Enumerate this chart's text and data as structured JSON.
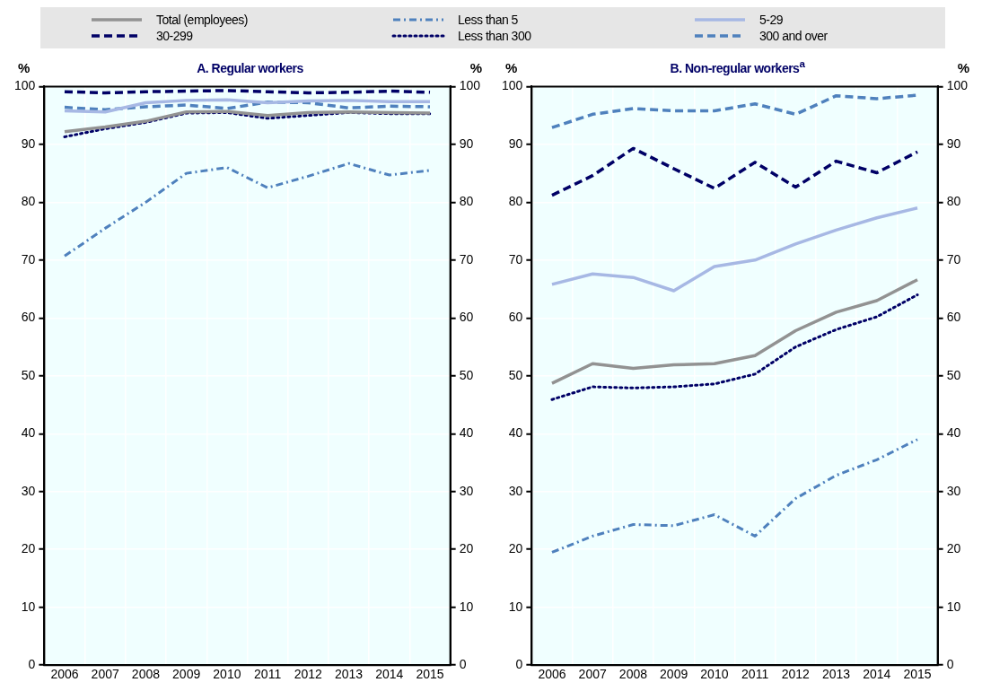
{
  "chart_data": [
    {
      "type": "line",
      "title": "A. Regular workers",
      "ylabel": "%",
      "y2label": "%",
      "categories": [
        "2006",
        "2007",
        "2008",
        "2009",
        "2010",
        "2011",
        "2012",
        "2013",
        "2014",
        "2015"
      ],
      "ylim": [
        0,
        100
      ],
      "yticks": [
        0,
        10,
        20,
        30,
        40,
        50,
        60,
        70,
        80,
        90,
        100
      ],
      "y2lim": [
        0,
        100
      ],
      "y2ticks": [
        0,
        10,
        20,
        30,
        40,
        50,
        60,
        70,
        80,
        90,
        100
      ],
      "grid": true,
      "legend": "top",
      "marker": "none",
      "series": [
        {
          "name": "Total (employees)",
          "color": "#929292",
          "line_style": "solid",
          "values": [
            92.2,
            93,
            94,
            95.6,
            95.7,
            95,
            95.5,
            95.6,
            95.5,
            95.4
          ]
        },
        {
          "name": "Less than 5",
          "color": "#4f81bd",
          "line_style": "dashdot",
          "values": [
            70.7,
            75.5,
            80,
            85,
            86,
            82.5,
            84.5,
            86.7,
            84.7,
            85.5
          ]
        },
        {
          "name": "5-29",
          "color": "#a7b8e4",
          "line_style": "solid",
          "values": [
            95.8,
            95.6,
            97.2,
            97.6,
            97.7,
            97.2,
            97.5,
            97.6,
            97.4,
            97.4
          ]
        },
        {
          "name": "30-299",
          "color": "#000066",
          "line_style": "dashed",
          "values": [
            99.1,
            98.9,
            99.1,
            99.2,
            99.3,
            99.1,
            98.9,
            99,
            99.2,
            99
          ]
        },
        {
          "name": "Less than 300",
          "color": "#000066",
          "line_style": "dotted",
          "values": [
            91.3,
            92.7,
            93.8,
            95.4,
            95.5,
            94.5,
            95,
            95.5,
            95.3,
            95.3
          ]
        },
        {
          "name": "300 and over",
          "color": "#4f81bd",
          "line_style": "dashed",
          "values": [
            96.4,
            96,
            96.5,
            96.8,
            96.2,
            97.3,
            97.2,
            96.3,
            96.6,
            96.5
          ]
        }
      ]
    },
    {
      "type": "line",
      "title": "B. Non-regular workers$^{a}$",
      "ylabel": "%",
      "y2label": "%",
      "categories": [
        "2006",
        "2007",
        "2008",
        "2009",
        "2010",
        "2011",
        "2012",
        "2013",
        "2014",
        "2015"
      ],
      "ylim": [
        0,
        100
      ],
      "yticks": [
        0,
        10,
        20,
        30,
        40,
        50,
        60,
        70,
        80,
        90,
        100
      ],
      "y2lim": [
        0,
        100
      ],
      "y2ticks": [
        0,
        10,
        20,
        30,
        40,
        50,
        60,
        70,
        80,
        90,
        100
      ],
      "grid": true,
      "legend": "top",
      "marker": "none",
      "series": [
        {
          "name": "Total (employees)",
          "color": "#929292",
          "line_style": "solid",
          "values": [
            48.7,
            52.1,
            51.3,
            51.9,
            52.1,
            53.5,
            57.8,
            61,
            63,
            66.6
          ]
        },
        {
          "name": "Less than 5",
          "color": "#4f81bd",
          "line_style": "dashdot",
          "values": [
            19.5,
            22.3,
            24.3,
            24.1,
            26,
            22.3,
            28.8,
            32.8,
            35.5,
            39
          ]
        },
        {
          "name": "5-29",
          "color": "#a7b8e4",
          "line_style": "solid",
          "values": [
            65.8,
            67.6,
            67,
            64.7,
            68.9,
            70,
            72.8,
            75.2,
            77.3,
            79
          ]
        },
        {
          "name": "30-299",
          "color": "#000066",
          "line_style": "dashed",
          "values": [
            81.2,
            84.6,
            89.3,
            85.8,
            82.4,
            86.9,
            82.6,
            87.1,
            85.1,
            88.7
          ]
        },
        {
          "name": "Less than 300",
          "color": "#000066",
          "line_style": "dotted",
          "values": [
            45.9,
            48.1,
            47.9,
            48.1,
            48.6,
            50.3,
            55,
            58,
            60.2,
            64
          ]
        },
        {
          "name": "300 and over",
          "color": "#4f81bd",
          "line_style": "dashed",
          "values": [
            92.9,
            95.2,
            96.2,
            95.8,
            95.8,
            97,
            95.2,
            98.4,
            97.9,
            98.5
          ]
        }
      ]
    }
  ]
}
